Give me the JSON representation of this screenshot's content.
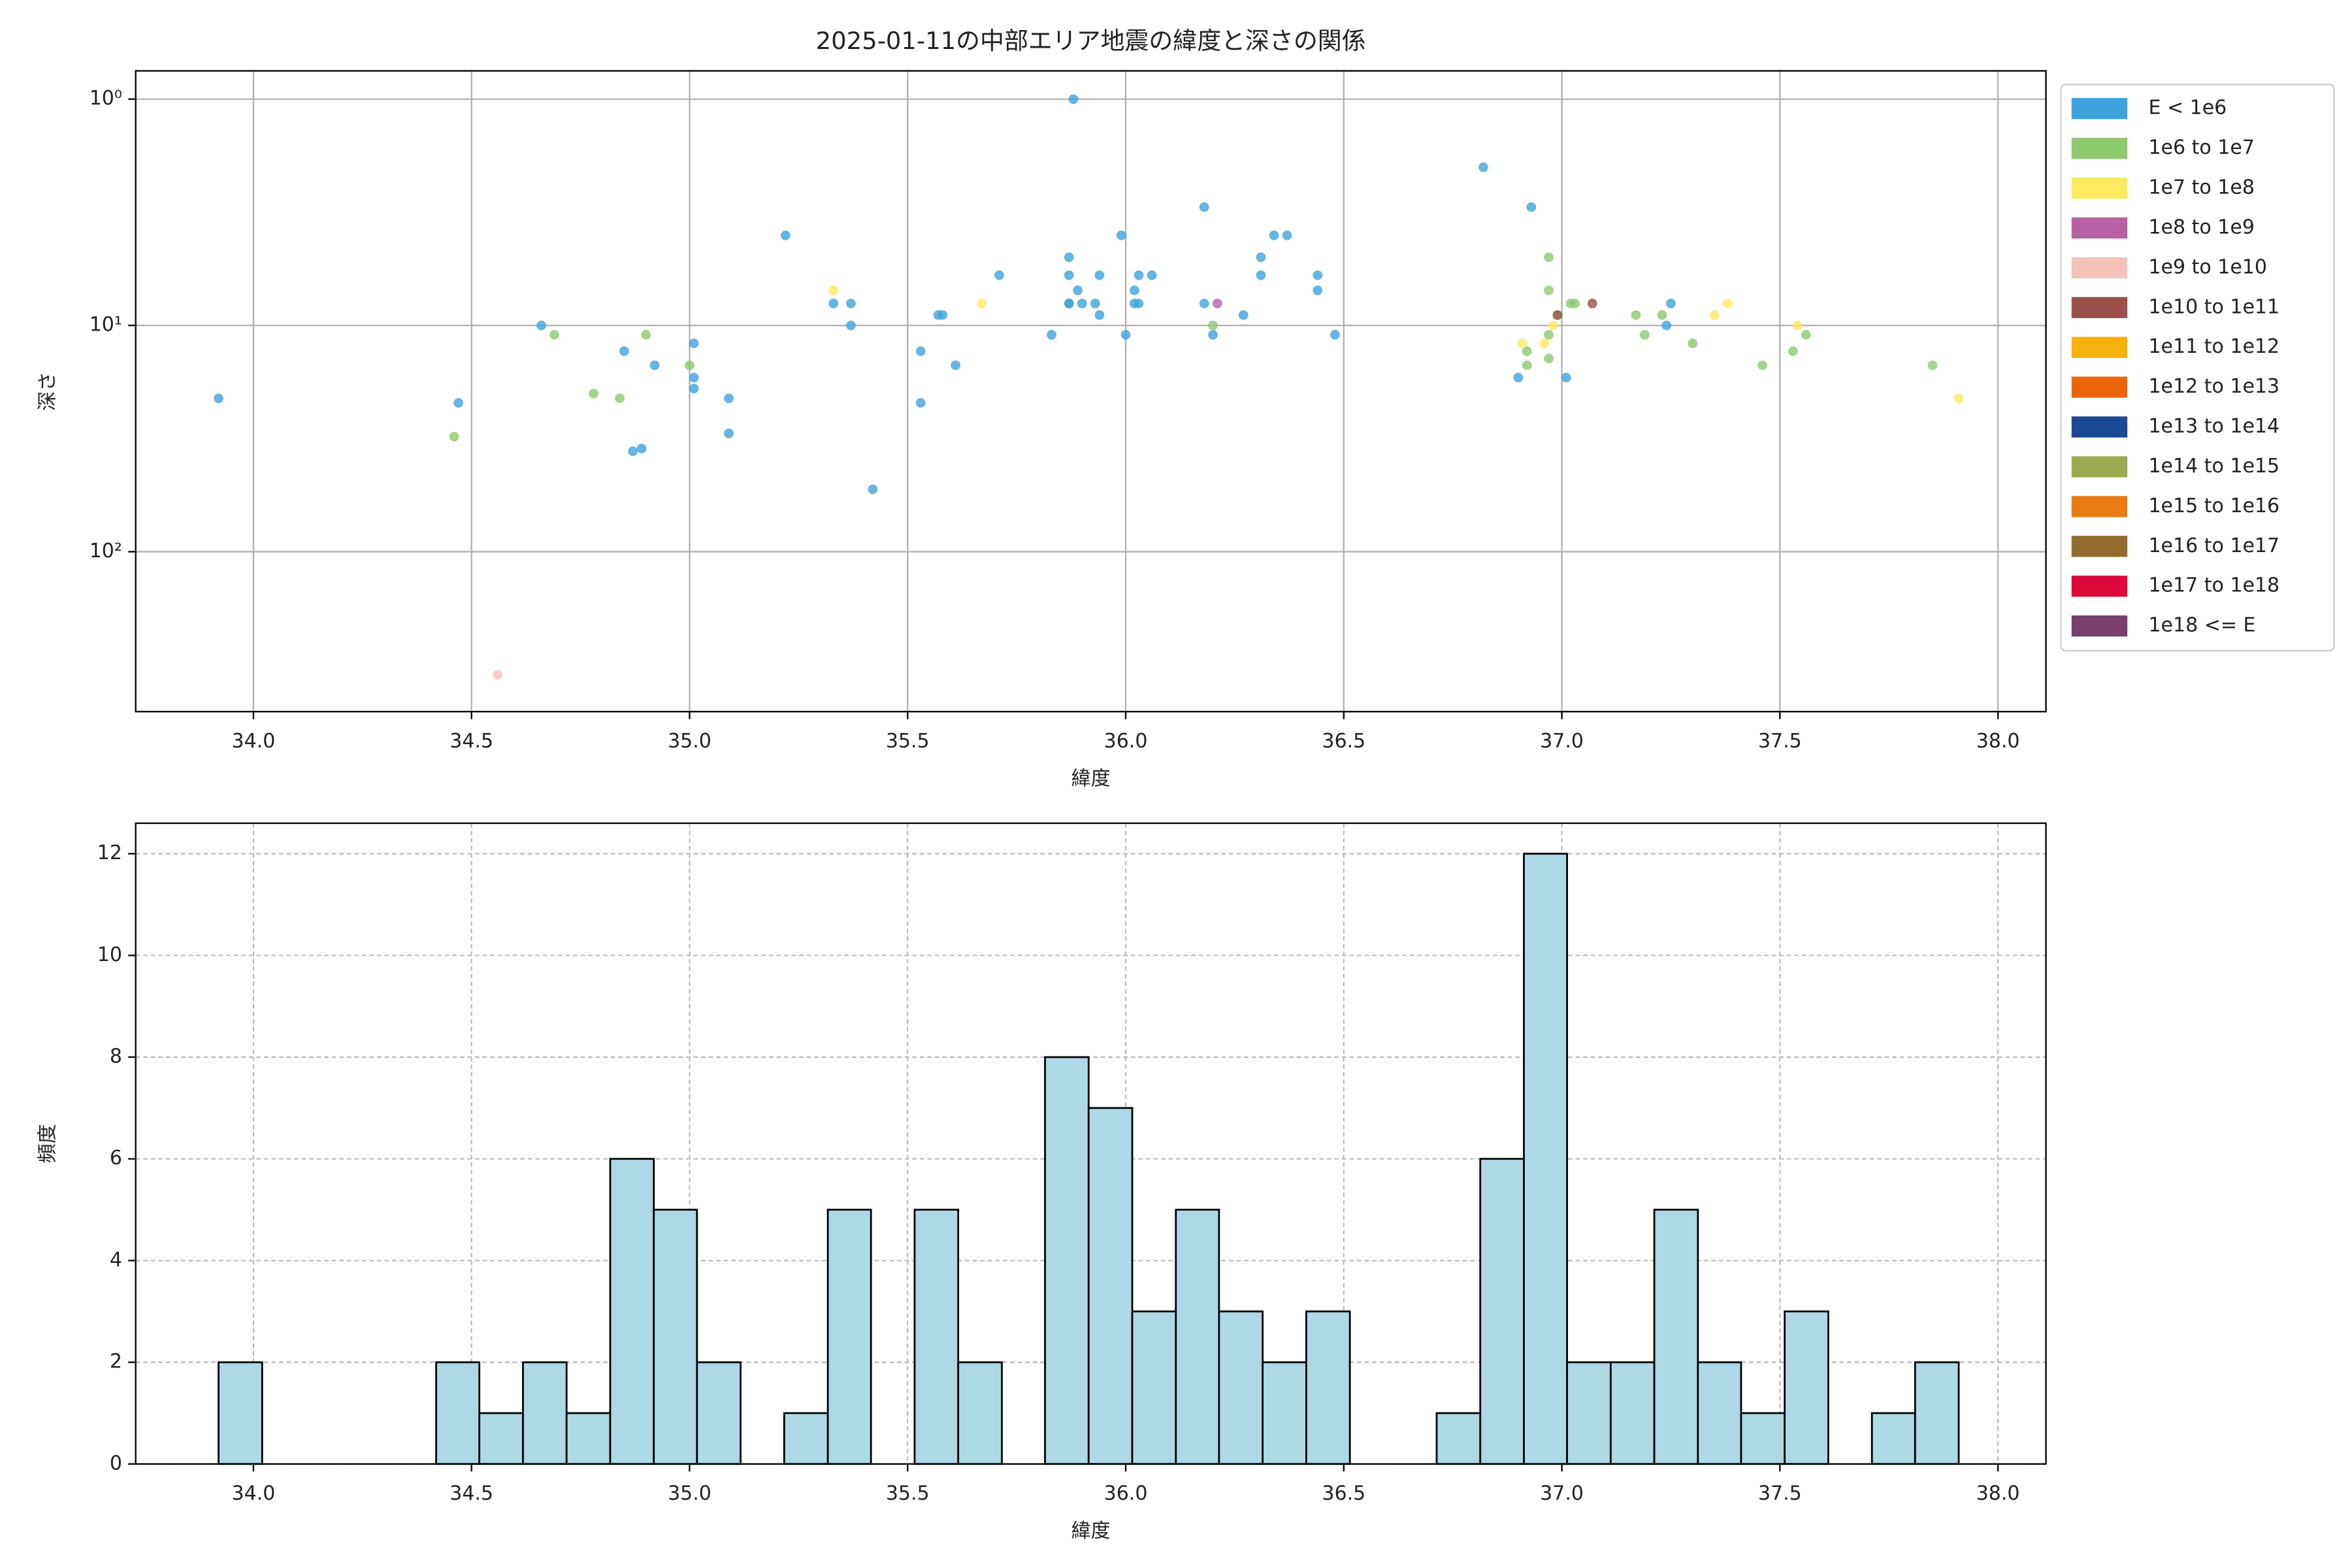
{
  "chart_data": [
    {
      "type": "scatter",
      "title": "2025-01-11の中部エリア地震の緯度と深さの関係",
      "xlabel": "緯度",
      "ylabel": "深さ",
      "xlim": [
        33.73,
        38.11
      ],
      "xticks": [
        {
          "value": 34,
          "label": "34.0"
        },
        {
          "value": 34.5,
          "label": "34.5"
        },
        {
          "value": 35,
          "label": "35.0"
        },
        {
          "value": 35.5,
          "label": "35.5"
        },
        {
          "value": 36,
          "label": "36.0"
        },
        {
          "value": 36.5,
          "label": "36.5"
        },
        {
          "value": 37,
          "label": "37.0"
        },
        {
          "value": 37.5,
          "label": "37.5"
        },
        {
          "value": 38,
          "label": "38.0"
        }
      ],
      "ylim": [
        509,
        0.75
      ],
      "yscale": "log",
      "yticks": [
        {
          "value": 1,
          "label": "10⁰"
        },
        {
          "value": 10,
          "label": "10¹"
        },
        {
          "value": 100,
          "label": "10²"
        }
      ],
      "grid": true,
      "legend": "outside-right",
      "series": [
        {
          "name": "E < 1e6",
          "color": "#3fa2dc",
          "x": [
            33.92,
            34.47,
            34.66,
            34.85,
            34.87,
            34.89,
            34.92,
            35.01,
            35.01,
            35.01,
            35.09,
            35.09,
            35.22,
            35.33,
            35.37,
            35.37,
            35.42,
            35.53,
            35.53,
            35.57,
            35.58,
            35.61,
            35.71,
            35.83,
            35.87,
            35.87,
            35.87,
            35.87,
            35.89,
            35.88,
            35.9,
            35.93,
            35.94,
            35.94,
            35.99,
            36.0,
            36.02,
            36.02,
            36.03,
            36.03,
            36.06,
            36.18,
            36.18,
            36.2,
            36.27,
            36.31,
            36.31,
            36.34,
            36.37,
            36.44,
            36.44,
            36.48,
            36.82,
            36.93,
            36.9,
            37.01,
            37.25,
            37.24
          ],
          "values": [
            21,
            22,
            10,
            13,
            36,
            35,
            15,
            12,
            17,
            19,
            21,
            30,
            4,
            8,
            8,
            10,
            53,
            13,
            22,
            9,
            9,
            15,
            6,
            11,
            8,
            8,
            5,
            6,
            7,
            1,
            8,
            8,
            6,
            9,
            4,
            11,
            7,
            8,
            6,
            8,
            6,
            8,
            3,
            11,
            9,
            6,
            5,
            4,
            4,
            6,
            7,
            11,
            2,
            3,
            17,
            17,
            8,
            10
          ]
        },
        {
          "name": "1e6 to 1e7",
          "color": "#8dc96f",
          "x": [
            34.46,
            34.69,
            34.78,
            34.84,
            34.9,
            35.0,
            36.2,
            36.92,
            36.92,
            36.97,
            36.97,
            36.97,
            36.97,
            36.99,
            37.02,
            37.03,
            37.17,
            37.19,
            37.23,
            37.3,
            37.46,
            37.53,
            37.56,
            37.85
          ],
          "values": [
            31,
            11,
            20,
            21,
            11,
            15,
            10,
            13,
            15,
            5,
            7,
            11,
            14,
            9,
            8,
            8,
            9,
            11,
            9,
            12,
            15,
            13,
            11,
            15
          ]
        },
        {
          "name": "1e7 to 1e8",
          "color": "#fdea5e",
          "x": [
            35.33,
            35.67,
            36.91,
            36.96,
            36.98,
            37.35,
            37.38,
            37.54,
            37.91
          ],
          "values": [
            7,
            8,
            12,
            12,
            10,
            9,
            8,
            10,
            21
          ]
        },
        {
          "name": "1e8 to 1e9",
          "color": "#b660a6",
          "x": [
            36.21
          ],
          "values": [
            8
          ]
        },
        {
          "name": "1e9 to 1e10",
          "color": "#f5c1bb",
          "x": [
            34.56
          ],
          "values": [
            350
          ]
        },
        {
          "name": "1e10 to 1e11",
          "color": "#9a5149",
          "x": [
            36.99,
            37.07
          ],
          "values": [
            9,
            8
          ]
        },
        {
          "name": "1e11 to 1e12",
          "color": "#f6b10c",
          "x": [],
          "values": []
        },
        {
          "name": "1e12 to 1e13",
          "color": "#ec6409",
          "x": [],
          "values": []
        },
        {
          "name": "1e13 to 1e14",
          "color": "#1b4a95",
          "x": [],
          "values": []
        },
        {
          "name": "1e14 to 1e15",
          "color": "#9bab4f",
          "x": [],
          "values": []
        },
        {
          "name": "1e15 to 1e16",
          "color": "#e97c14",
          "x": [],
          "values": []
        },
        {
          "name": "1e16 to 1e17",
          "color": "#946b2f",
          "x": [],
          "values": []
        },
        {
          "name": "1e17 to 1e18",
          "color": "#dc0a3a",
          "x": [],
          "values": []
        },
        {
          "name": "1e18 <= E",
          "color": "#7a3f6a",
          "x": [],
          "values": []
        }
      ]
    },
    {
      "type": "histogram",
      "xlabel": "緯度",
      "ylabel": "頻度",
      "color": "#add8e6",
      "grid": true,
      "xlim": [
        33.73,
        38.11
      ],
      "xticks": [
        {
          "value": 34,
          "label": "34.0"
        },
        {
          "value": 34.5,
          "label": "34.5"
        },
        {
          "value": 35,
          "label": "35.0"
        },
        {
          "value": 35.5,
          "label": "35.5"
        },
        {
          "value": 36,
          "label": "36.0"
        },
        {
          "value": 36.5,
          "label": "36.5"
        },
        {
          "value": 37,
          "label": "37.0"
        },
        {
          "value": 37.5,
          "label": "37.5"
        },
        {
          "value": 38,
          "label": "38.0"
        }
      ],
      "ylim": [
        0,
        12.6
      ],
      "yticks": [
        0,
        2,
        4,
        6,
        8,
        10,
        12
      ],
      "bins": [
        33.92,
        34.02,
        34.12,
        34.219,
        34.319,
        34.419,
        34.518,
        34.618,
        34.718,
        34.818,
        34.918,
        35.017,
        35.117,
        35.217,
        35.317,
        35.416,
        35.516,
        35.616,
        35.716,
        35.815,
        35.915,
        36.015,
        36.115,
        36.214,
        36.314,
        36.414,
        36.514,
        36.613,
        36.713,
        36.813,
        36.913,
        37.012,
        37.112,
        37.212,
        37.312,
        37.411,
        37.511,
        37.611,
        37.711,
        37.81,
        37.91
      ],
      "values": [
        2,
        0,
        0,
        0,
        0,
        2,
        1,
        2,
        1,
        6,
        5,
        2,
        0,
        1,
        5,
        0,
        5,
        2,
        0,
        8,
        7,
        3,
        5,
        3,
        2,
        3,
        0,
        0,
        1,
        6,
        12,
        2,
        2,
        5,
        2,
        1,
        3,
        0,
        1,
        2
      ]
    }
  ]
}
